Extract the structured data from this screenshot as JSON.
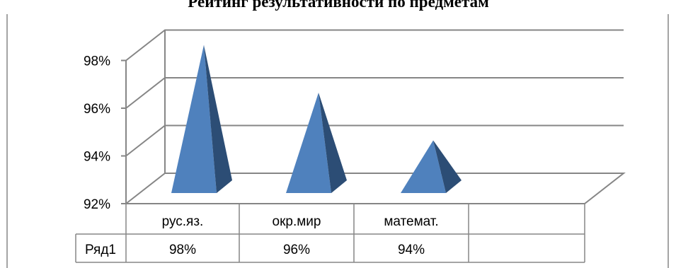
{
  "chart_data": {
    "type": "bar",
    "shape": "3d-pyramid",
    "title": "Рейтинг результативности по предметам",
    "categories": [
      "рус.яз.",
      "окр.мир",
      "математ."
    ],
    "series": [
      {
        "name": "Ряд1",
        "values": [
          0.98,
          0.96,
          0.94
        ],
        "labels": [
          "98%",
          "96%",
          "94%"
        ]
      }
    ],
    "ylim": [
      0.92,
      0.98
    ],
    "yticks": [
      0.92,
      0.94,
      0.96,
      0.98
    ],
    "ytick_labels": [
      "92%",
      "94%",
      "96%",
      "98%"
    ],
    "grid": true,
    "data_table": true,
    "colors": {
      "front": "#4f81bd",
      "side": "#2c4d75",
      "grid": "#868686"
    }
  }
}
